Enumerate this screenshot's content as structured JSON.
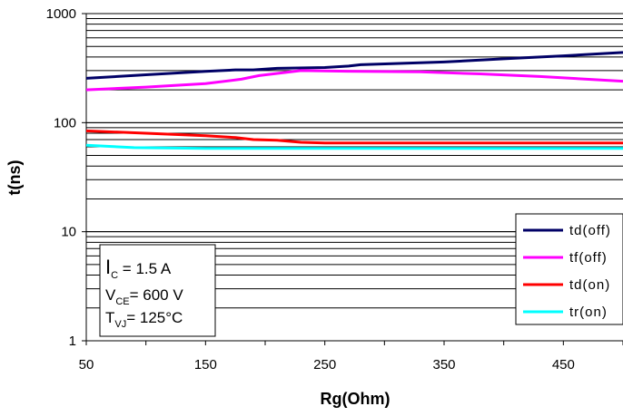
{
  "chart_data": {
    "type": "line",
    "xlabel": "Rg(Ohm)",
    "ylabel": "t(ns)",
    "xlim": [
      50,
      500
    ],
    "ylim": [
      1,
      1000
    ],
    "yscale": "log",
    "x_ticks": [
      "50",
      "150",
      "250",
      "350",
      "450"
    ],
    "y_ticks": [
      "1",
      "10",
      "100",
      "1000"
    ],
    "grid": "horizontal",
    "legend_position": "bottom-right",
    "series": [
      {
        "name": "td(off)",
        "color": "#000066",
        "x": [
          50,
          100,
          150,
          175,
          190,
          210,
          250,
          270,
          280,
          350,
          400,
          450,
          500
        ],
        "y": [
          255,
          275,
          295,
          305,
          305,
          315,
          320,
          330,
          340,
          360,
          385,
          410,
          440
        ]
      },
      {
        "name": "tf(off)",
        "color": "#ff00ff",
        "x": [
          50,
          100,
          150,
          180,
          195,
          230,
          280,
          330,
          380,
          430,
          500
        ],
        "y": [
          200,
          212,
          228,
          250,
          270,
          300,
          295,
          292,
          280,
          265,
          240
        ]
      },
      {
        "name": "td(on)",
        "color": "#ff0000",
        "x": [
          50,
          100,
          150,
          175,
          190,
          210,
          230,
          250,
          300,
          400,
          500
        ],
        "y": [
          84,
          80,
          76,
          73,
          70,
          69,
          66,
          65,
          65,
          65,
          65
        ]
      },
      {
        "name": "tr(on)",
        "color": "#00ffff",
        "x": [
          50,
          90,
          150,
          250,
          350,
          450,
          500
        ],
        "y": [
          62,
          59,
          58,
          58,
          58,
          58,
          58
        ]
      }
    ]
  },
  "conditions": {
    "ic_main": "I",
    "ic_sub": "C",
    "ic_value": " =  1.5 A",
    "vce_main": "V",
    "vce_sub": "CE",
    "vce_value": "= 600 V",
    "tvj_main": "T",
    "tvj_sub": "VJ",
    "tvj_value": "= 125°C"
  }
}
